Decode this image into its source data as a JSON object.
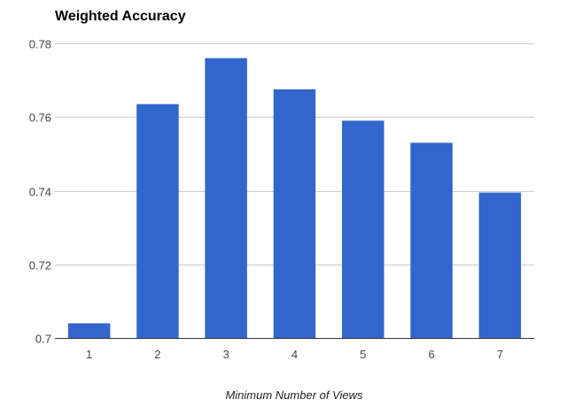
{
  "chart_data": {
    "type": "bar",
    "title": "Weighted Accuracy",
    "xlabel": "Minimum Number of Views",
    "ylabel": "",
    "categories": [
      "1",
      "2",
      "3",
      "4",
      "5",
      "6",
      "7"
    ],
    "values": [
      0.704,
      0.7635,
      0.776,
      0.7675,
      0.759,
      0.753,
      0.7395
    ],
    "ylim": [
      0.7,
      0.78
    ],
    "yticks": [
      0.7,
      0.72,
      0.74,
      0.76,
      0.78
    ],
    "ytick_labels": [
      "0.7",
      "0.72",
      "0.74",
      "0.76",
      "0.78"
    ],
    "grid": true,
    "legend": "none",
    "bar_color": "#3366cc"
  }
}
